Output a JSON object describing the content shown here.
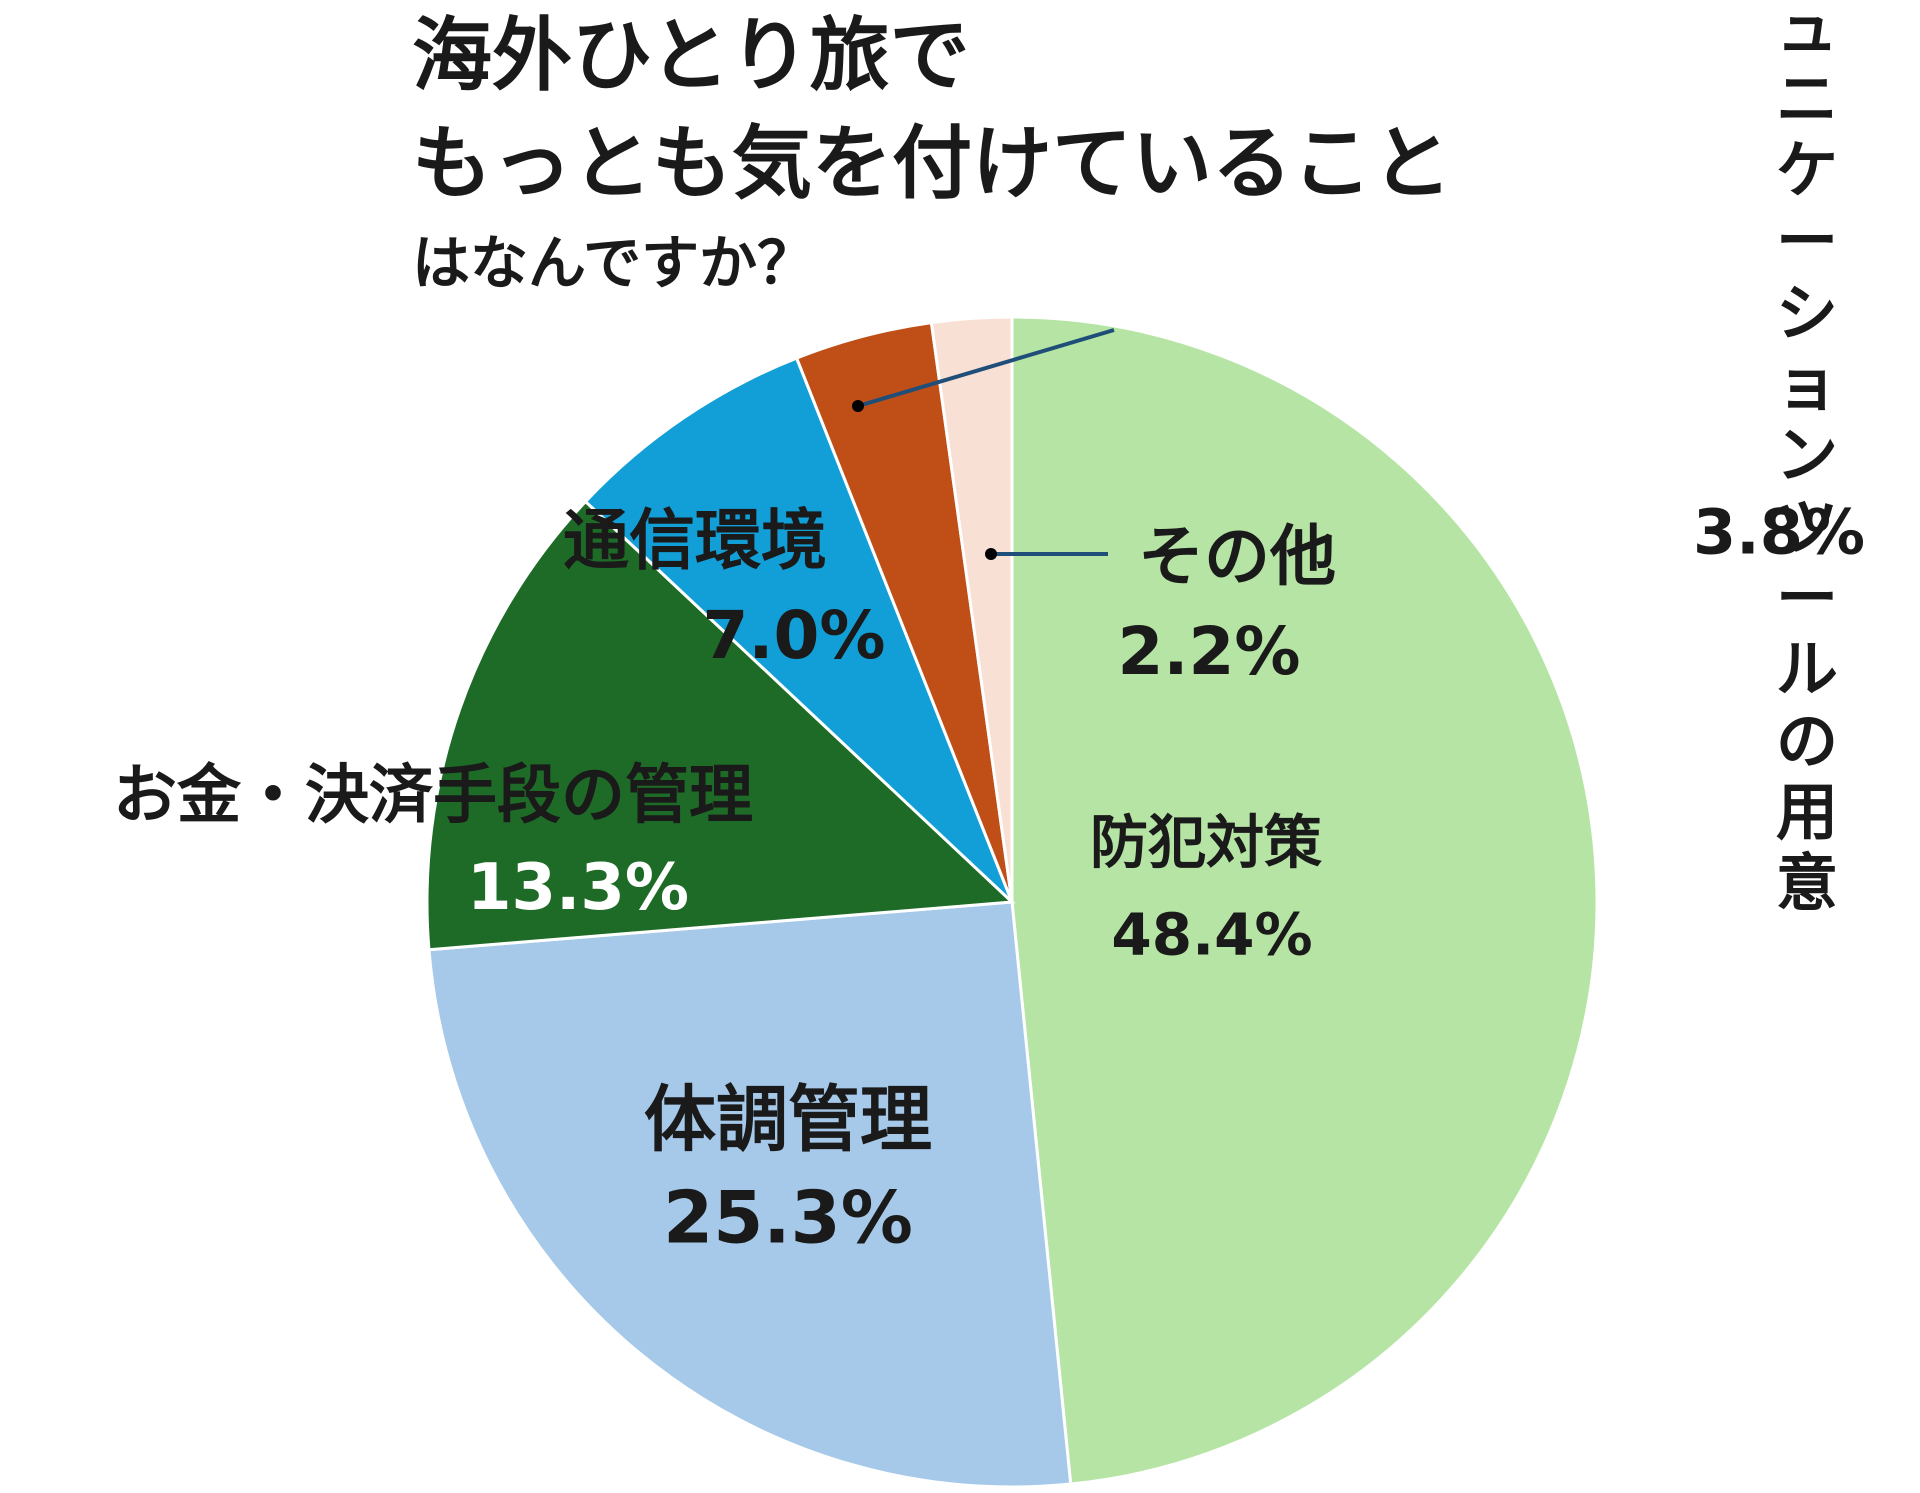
{
  "chart_data": {
    "type": "pie",
    "title": [
      "海外ひとり旅で",
      "もっとも気を付けていること",
      "はなんですか？"
    ],
    "categories": [
      "防犯対策",
      "体調管理",
      "お金・決済手段の管理",
      "通信環境",
      "コミュニケーション\nツールの用意",
      "その他"
    ],
    "values": [
      48.4,
      25.3,
      13.3,
      7.0,
      3.8,
      2.2
    ],
    "value_labels": [
      "48.4%",
      "25.3%",
      "13.3%",
      "7.0%",
      "3.8%",
      "2.2%"
    ],
    "colors": [
      "#b5e4a4",
      "#a6c9ea",
      "#1e6b27",
      "#129fd8",
      "#c04f17",
      "#f9e0d4"
    ]
  }
}
